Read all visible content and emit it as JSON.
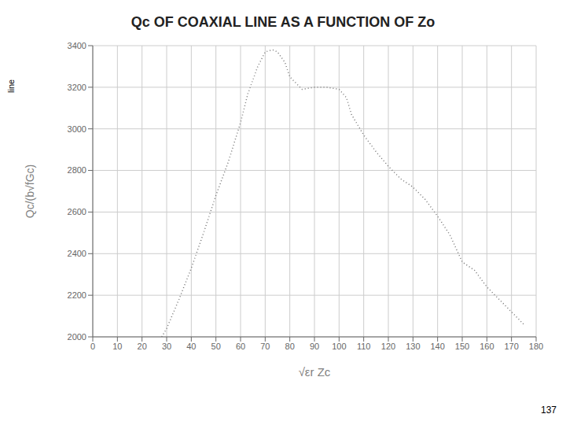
{
  "chart_data": {
    "type": "line",
    "title": "Qc OF COAXIAL LINE AS A FUNCTION OF Zo",
    "x_label": "√εr Zc",
    "y_label": "Qc/(b√fGc)",
    "annotations": [
      "line",
      "137"
    ],
    "x": [
      28,
      30,
      35,
      40,
      45,
      50,
      55,
      60,
      63,
      67,
      70,
      73,
      75,
      78,
      80,
      85,
      90,
      95,
      100,
      103,
      105,
      110,
      115,
      120,
      125,
      130,
      135,
      140,
      145,
      150,
      155,
      160,
      165,
      170,
      175
    ],
    "values": [
      2000,
      2040,
      2180,
      2330,
      2500,
      2680,
      2840,
      3030,
      3170,
      3300,
      3370,
      3380,
      3370,
      3320,
      3250,
      3190,
      3200,
      3200,
      3190,
      3150,
      3070,
      2970,
      2890,
      2820,
      2760,
      2720,
      2660,
      2580,
      2490,
      2360,
      2320,
      2240,
      2180,
      2120,
      2060
    ],
    "color": "#777777",
    "line_style": "dotted",
    "xlim": [
      0,
      180
    ],
    "ylim": [
      2000,
      3400
    ],
    "xticks": [
      0,
      10,
      20,
      30,
      40,
      50,
      60,
      70,
      80,
      90,
      100,
      110,
      120,
      130,
      140,
      150,
      160,
      170,
      180
    ],
    "yticks": [
      2000,
      2200,
      2400,
      2600,
      2800,
      3000,
      3200,
      3400
    ],
    "grid": true
  }
}
